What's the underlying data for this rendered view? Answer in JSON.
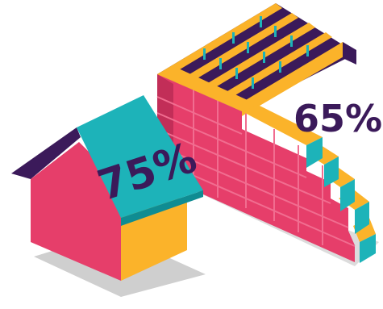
{
  "labels": {
    "house_percent": "75%",
    "wall_percent": "65%"
  },
  "colors": {
    "pink": "#e63e6a",
    "pink_dark": "#c22e58",
    "pink_line": "#f16d90",
    "orange": "#fbb32a",
    "orange_dark": "#f09a1c",
    "teal": "#1db3b9",
    "purple": "#3b1a5a",
    "shadow": "#cfcfcf"
  }
}
